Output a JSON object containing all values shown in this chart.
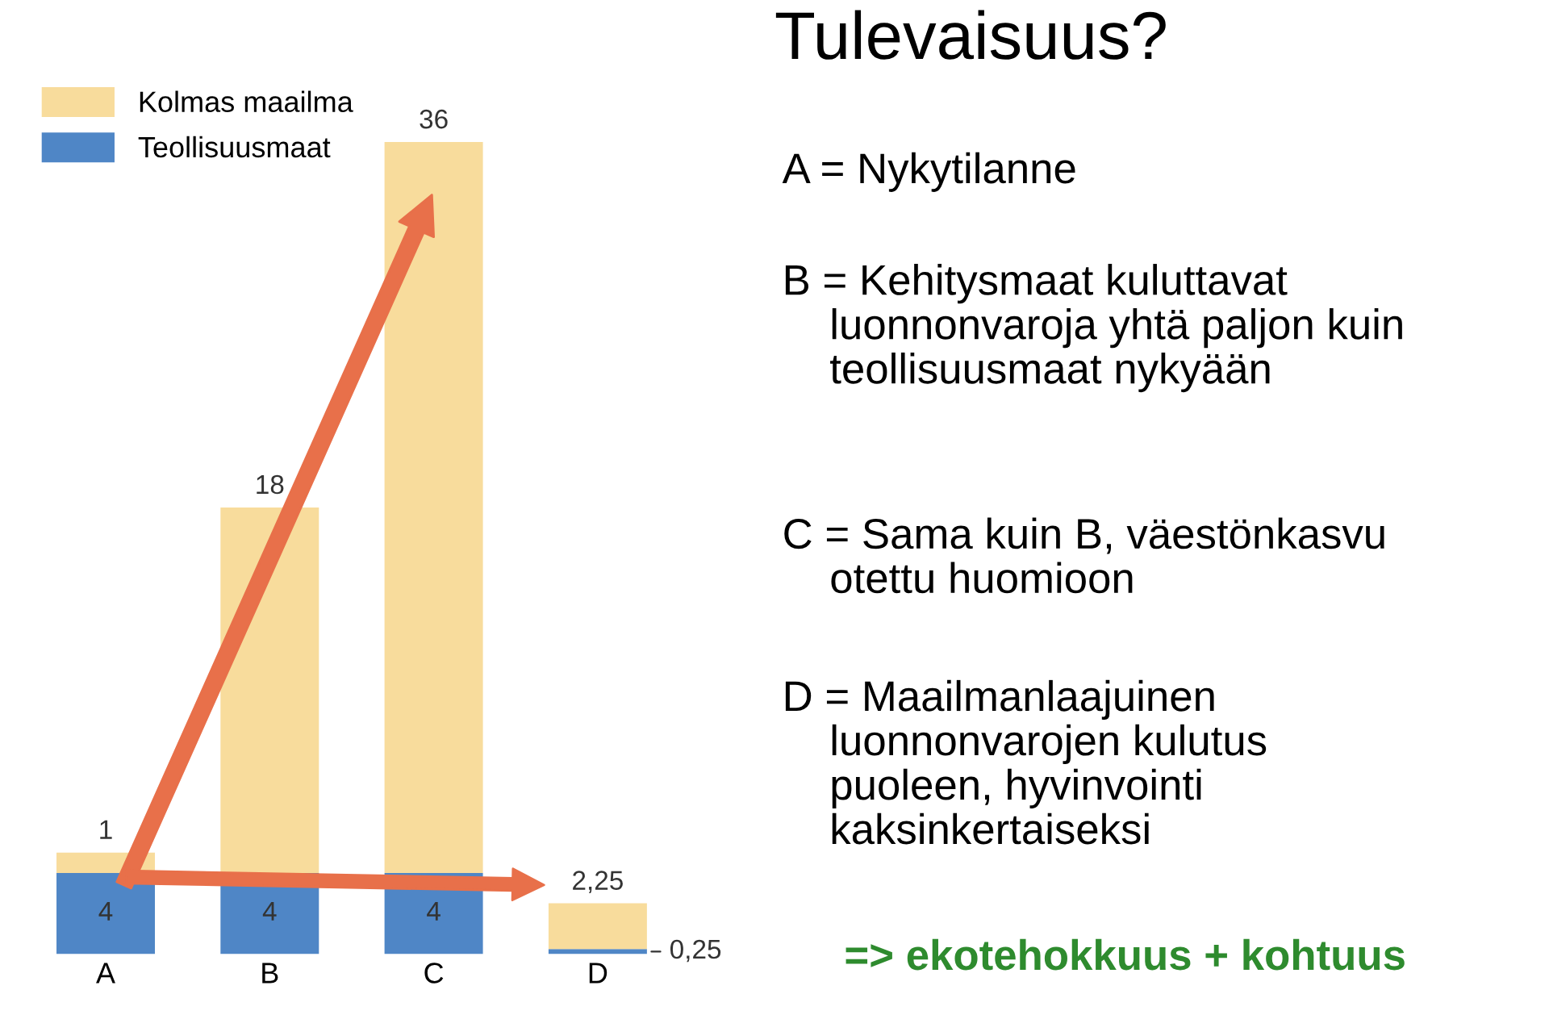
{
  "chart_data": {
    "type": "bar",
    "title": "Tulevaisuus?",
    "categories": [
      "A",
      "B",
      "C",
      "D"
    ],
    "stacked": true,
    "legend": "top left",
    "series": [
      {
        "name": "Teollisuusmaat",
        "color": "#4f86c6",
        "values": [
          4,
          4,
          4,
          0.25
        ],
        "value_labels": [
          "4",
          "4",
          "4",
          "0,25"
        ]
      },
      {
        "name": "Kolmas maailma",
        "color": "#f8dc9c",
        "values": [
          1,
          18,
          36,
          2.25
        ],
        "value_labels": [
          "1",
          "18",
          "36",
          "2,25"
        ]
      }
    ],
    "annotations": [
      "A = Nykytilanne",
      "B = Kehitysmaat kuluttavat\n    luonnonvaroja yhtä paljon kuin\n    teollisuusmaat nykyään",
      "C = Sama kuin B, väestönkasvu\n    otettu huomioon",
      "D = Maailmanlaajuinen\n    luonnonvarojen kulutus\n    puoleen, hyvinvointi\n    kaksinkertaiseksi",
      "=> ekotehokkuus + kohtuus"
    ]
  }
}
